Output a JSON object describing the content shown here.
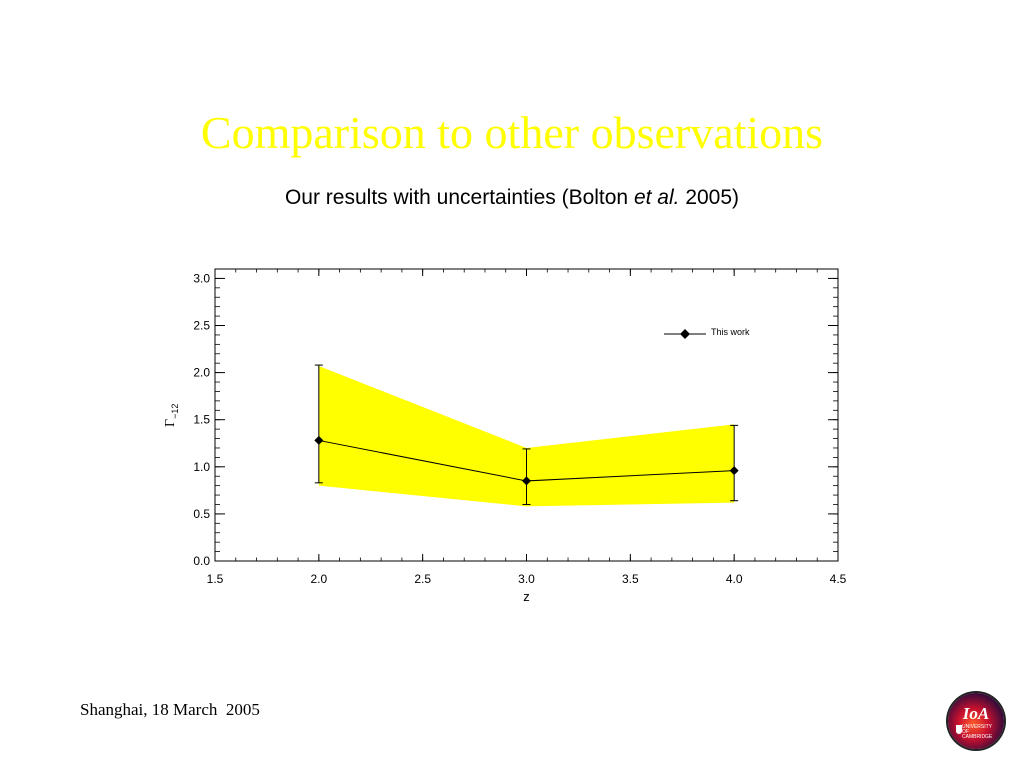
{
  "slide": {
    "title": "Comparison to other observations",
    "subtitle_before": "Our results with uncertainties (Bolton ",
    "subtitle_italic": "et al.",
    "subtitle_after": " 2005)",
    "footer": "Shanghai, 18 March  2005",
    "logo_text": "IoA",
    "logo_subtext": "UNIVERSITY OF CAMBRIDGE",
    "title_color": "#ffff00"
  },
  "chart_data": {
    "type": "line",
    "xlabel": "z",
    "ylabel_symbol": "Γ",
    "ylabel_subscript": "−12",
    "xlim": [
      1.5,
      4.5
    ],
    "ylim": [
      0.0,
      3.1
    ],
    "xticks": [
      "1.5",
      "2.0",
      "2.5",
      "3.0",
      "3.5",
      "4.0",
      "4.5"
    ],
    "yticks": [
      "0.0",
      "0.5",
      "1.0",
      "1.5",
      "2.0",
      "2.5",
      "3.0"
    ],
    "band_color": "#ffff00",
    "band": {
      "x": [
        2.0,
        3.0,
        4.0
      ],
      "lower": [
        0.8,
        0.58,
        0.62
      ],
      "upper": [
        2.07,
        1.2,
        1.45
      ]
    },
    "series": [
      {
        "name": "This work",
        "x": [
          2.0,
          3.0,
          4.0
        ],
        "y": [
          1.28,
          0.85,
          0.96
        ],
        "err_low": [
          0.83,
          0.6,
          0.64
        ],
        "err_high": [
          2.08,
          1.19,
          1.44
        ]
      }
    ],
    "legend_position": "top-right",
    "grid": false
  }
}
